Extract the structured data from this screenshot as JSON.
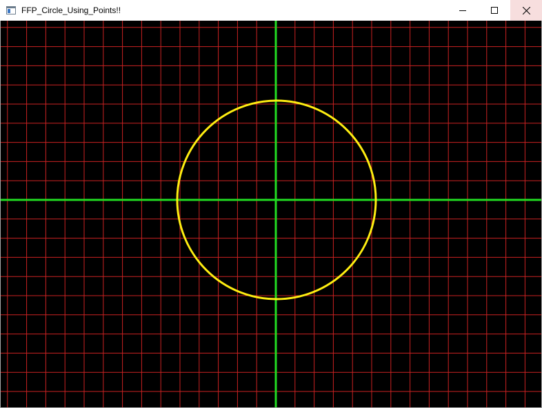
{
  "window": {
    "title": "FFP_Circle_Using_Points!!"
  },
  "icons": {
    "app": "app-window-icon",
    "minimize": "minimize-icon",
    "maximize": "maximize-icon",
    "close": "close-icon"
  },
  "colors": {
    "canvas_background": "#000000",
    "grid": "#cc2222",
    "axes": "#22dd22",
    "circle": "#ffee11",
    "close_button_bg": "#f7dede"
  }
}
